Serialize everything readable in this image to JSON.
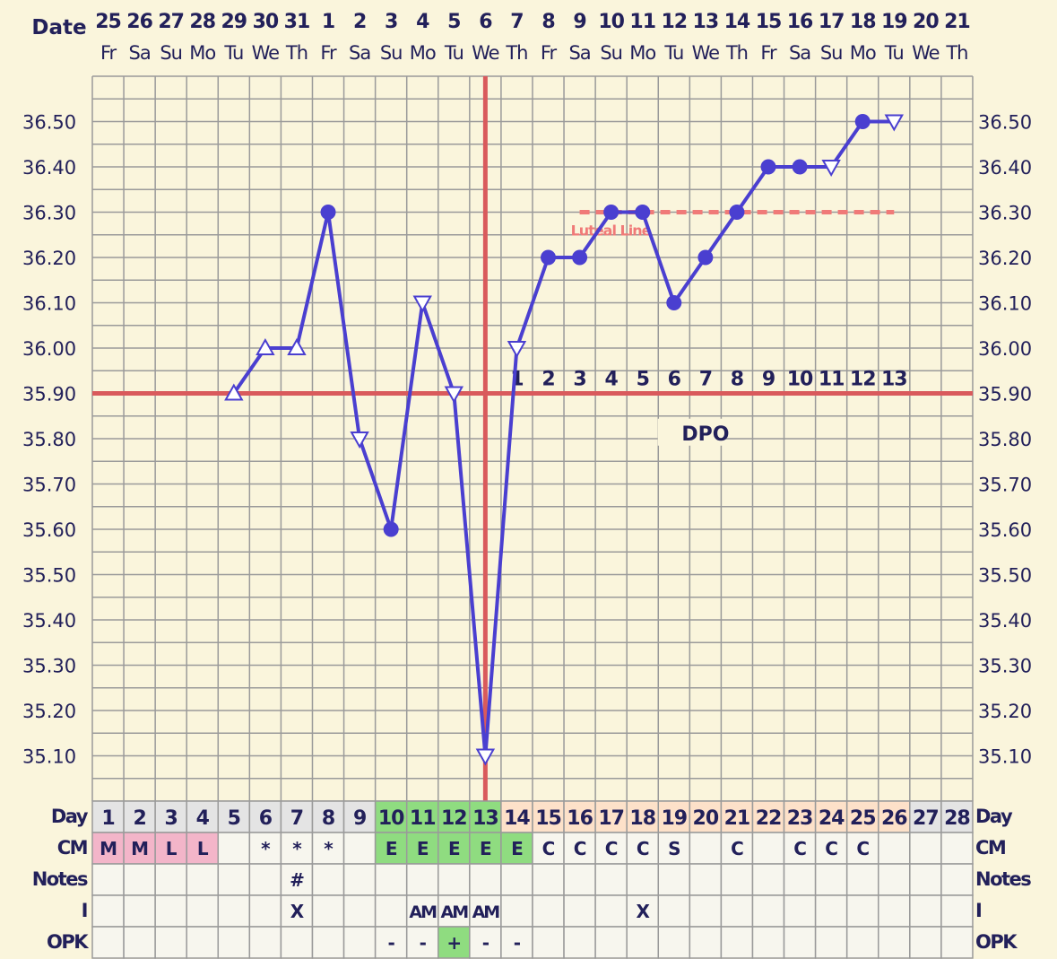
{
  "chart_data": {
    "type": "line",
    "title": "",
    "header": {
      "date_label": "Date",
      "dates": [
        "25",
        "26",
        "27",
        "28",
        "29",
        "30",
        "31",
        "1",
        "2",
        "3",
        "4",
        "5",
        "6",
        "7",
        "8",
        "9",
        "10",
        "11",
        "12",
        "13",
        "14",
        "15",
        "16",
        "17",
        "18",
        "19",
        "20",
        "21"
      ],
      "weekdays": [
        "Fr",
        "Sa",
        "Su",
        "Mo",
        "Tu",
        "We",
        "Th",
        "Fr",
        "Sa",
        "Su",
        "Mo",
        "Tu",
        "We",
        "Th",
        "Fr",
        "Sa",
        "Su",
        "Mo",
        "Tu",
        "We",
        "Th",
        "Fr",
        "Sa",
        "Su",
        "Mo",
        "Tu",
        "We",
        "Th"
      ]
    },
    "ylim": [
      35.0,
      36.6
    ],
    "yticks": [
      "36.50",
      "36.40",
      "36.30",
      "36.20",
      "36.10",
      "36.00",
      "35.90",
      "35.80",
      "35.70",
      "35.60",
      "35.50",
      "35.40",
      "35.30",
      "35.20",
      "35.10"
    ],
    "grid": true,
    "series": [
      {
        "color": "#4a3fd0",
        "x": [
          5,
          6,
          7,
          8,
          9,
          10,
          11,
          12,
          13,
          14,
          15,
          16,
          17,
          18,
          19,
          20,
          21,
          22,
          23,
          24,
          25,
          26
        ],
        "values": [
          35.9,
          36.0,
          36.0,
          36.3,
          35.8,
          35.6,
          36.1,
          35.9,
          35.1,
          36.0,
          36.2,
          36.2,
          36.3,
          36.3,
          36.1,
          36.2,
          36.3,
          36.4,
          36.4,
          36.4,
          36.5,
          36.5
        ],
        "markers": [
          "tri-up",
          "tri-up",
          "tri-up",
          "dot",
          "tri-down",
          "dot",
          "tri-down",
          "tri-down",
          "tri-down",
          "tri-down",
          "dot",
          "dot",
          "dot",
          "dot",
          "dot",
          "dot",
          "dot",
          "dot",
          "dot",
          "tri-down",
          "dot",
          "tri-down"
        ]
      }
    ],
    "coverline": {
      "value": 35.9,
      "color": "#d95a5c"
    },
    "ovulation_day": 13,
    "luteal_line": {
      "value": 36.3,
      "from_day": 16,
      "to_day": 26,
      "label": "Luteal Line",
      "color": "#f07a78"
    },
    "dpo": {
      "label": "DPO",
      "start_day": 14,
      "numbers": [
        "1",
        "2",
        "3",
        "4",
        "5",
        "6",
        "7",
        "8",
        "9",
        "10",
        "11",
        "12",
        "13"
      ]
    },
    "table": {
      "rows": [
        {
          "label": "Day",
          "cells": [
            "1",
            "2",
            "3",
            "4",
            "5",
            "6",
            "7",
            "8",
            "9",
            "10",
            "11",
            "12",
            "13",
            "14",
            "15",
            "16",
            "17",
            "18",
            "19",
            "20",
            "21",
            "22",
            "23",
            "24",
            "25",
            "26",
            "27",
            "28"
          ],
          "colors": [
            "gray",
            "gray",
            "gray",
            "gray",
            "gray",
            "gray",
            "gray",
            "gray",
            "gray",
            "green",
            "green",
            "green",
            "green",
            "peach",
            "peach",
            "peach",
            "peach",
            "peach",
            "peach",
            "peach",
            "peach",
            "peach",
            "peach",
            "peach",
            "peach",
            "peach",
            "gray",
            "gray"
          ]
        },
        {
          "label": "CM",
          "cells": [
            "M",
            "M",
            "L",
            "L",
            "",
            "*",
            "*",
            "*",
            "",
            "E",
            "E",
            "E",
            "E",
            "E",
            "C",
            "C",
            "C",
            "C",
            "S",
            "",
            "C",
            "",
            "C",
            "C",
            "C",
            "",
            "",
            ""
          ],
          "colors": [
            "pink",
            "pink",
            "pink",
            "pink",
            "",
            "",
            "",
            "",
            "",
            "green",
            "green",
            "green",
            "green",
            "green",
            "",
            "",
            "",
            "",
            "",
            "",
            "",
            "",
            "",
            "",
            "",
            "",
            "",
            ""
          ]
        },
        {
          "label": "Notes",
          "cells": [
            "",
            "",
            "",
            "",
            "",
            "",
            "#",
            "",
            "",
            "",
            "",
            "",
            "",
            "",
            "",
            "",
            "",
            "",
            "",
            "",
            "",
            "",
            "",
            "",
            "",
            "",
            "",
            ""
          ],
          "colors": []
        },
        {
          "label": "I",
          "cells": [
            "",
            "",
            "",
            "",
            "",
            "",
            "X",
            "",
            "",
            "",
            "AM",
            "AM",
            "AM",
            "",
            "",
            "",
            "",
            "X",
            "",
            "",
            "",
            "",
            "",
            "",
            "",
            "",
            "",
            ""
          ],
          "colors": []
        },
        {
          "label": "OPK",
          "cells": [
            "",
            "",
            "",
            "",
            "",
            "",
            "",
            "",
            "",
            "-",
            "-",
            "+",
            "-",
            "-",
            "",
            "",
            "",
            "",
            "",
            "",
            "",
            "",
            "",
            "",
            "",
            "",
            "",
            ""
          ],
          "colors": [
            "",
            "",
            "",
            "",
            "",
            "",
            "",
            "",
            "",
            "",
            "",
            "green",
            "",
            "",
            "",
            "",
            "",
            "",
            "",
            "",
            "",
            "",
            "",
            "",
            "",
            "",
            "",
            ""
          ]
        }
      ],
      "palette": {
        "gray": "#e4e4e4",
        "green": "#8fdc80",
        "peach": "#fde1c9",
        "pink": "#f3b5c9",
        "blank": "#f7f6ee"
      }
    }
  }
}
